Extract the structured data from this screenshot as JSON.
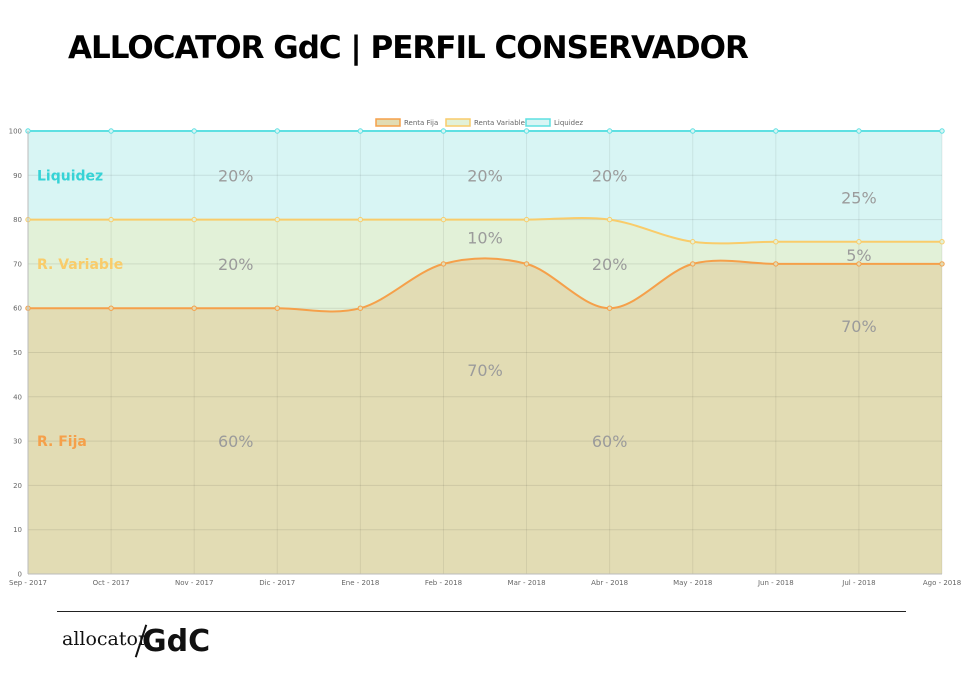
{
  "header": {
    "title": "ALLOCATOR GdC | PERFIL CONSERVADOR"
  },
  "footer": {
    "logo_word": "allocator",
    "logo_brand": "GdC"
  },
  "chart_data": {
    "type": "area",
    "stacked": true,
    "title": "",
    "xlabel": "",
    "ylabel": "",
    "ylim": [
      0,
      100
    ],
    "yticks": [
      0,
      10,
      20,
      30,
      40,
      50,
      60,
      70,
      80,
      90,
      100
    ],
    "grid": true,
    "legend_position": "top",
    "x": [
      "Sep - 2017",
      "Oct - 2017",
      "Nov - 2017",
      "Dic - 2017",
      "Ene - 2018",
      "Feb - 2018",
      "Mar - 2018",
      "Abr - 2018",
      "May - 2018",
      "Jun - 2018",
      "Jul - 2018",
      "Ago - 2018"
    ],
    "series": [
      {
        "name": "Renta Fija",
        "values": [
          60,
          60,
          60,
          60,
          60,
          70,
          70,
          60,
          70,
          70,
          70,
          70
        ],
        "color": "#f5a04a",
        "fill": "#e2dcb4"
      },
      {
        "name": "Renta Variable",
        "values": [
          80,
          80,
          80,
          80,
          80,
          80,
          80,
          80,
          75,
          75,
          75,
          75
        ],
        "color": "#f9cc6a",
        "fill": "#e2f1d8"
      },
      {
        "name": "Liquidez",
        "values": [
          100,
          100,
          100,
          100,
          100,
          100,
          100,
          100,
          100,
          100,
          100,
          100
        ],
        "color": "#5ee0e2",
        "fill": "#d8f5f4"
      }
    ],
    "side_labels": [
      {
        "text": "Liquidez",
        "color": "#36d3d6",
        "y": 90
      },
      {
        "text": "R. Variable",
        "color": "#f9cc6a",
        "y": 70
      },
      {
        "text": "R. Fija",
        "color": "#f5a04a",
        "y": 30
      }
    ],
    "annotations": [
      {
        "text": "20%",
        "x": 2.5,
        "y": 90
      },
      {
        "text": "20%",
        "x": 5.5,
        "y": 90
      },
      {
        "text": "20%",
        "x": 7.0,
        "y": 90
      },
      {
        "text": "25%",
        "x": 10.0,
        "y": 85
      },
      {
        "text": "10%",
        "x": 5.5,
        "y": 76
      },
      {
        "text": "20%",
        "x": 2.5,
        "y": 70
      },
      {
        "text": "20%",
        "x": 7.0,
        "y": 70
      },
      {
        "text": "5%",
        "x": 10.0,
        "y": 72
      },
      {
        "text": "70%",
        "x": 10.0,
        "y": 56
      },
      {
        "text": "70%",
        "x": 5.5,
        "y": 46
      },
      {
        "text": "60%",
        "x": 2.5,
        "y": 30
      },
      {
        "text": "60%",
        "x": 7.0,
        "y": 30
      }
    ]
  }
}
